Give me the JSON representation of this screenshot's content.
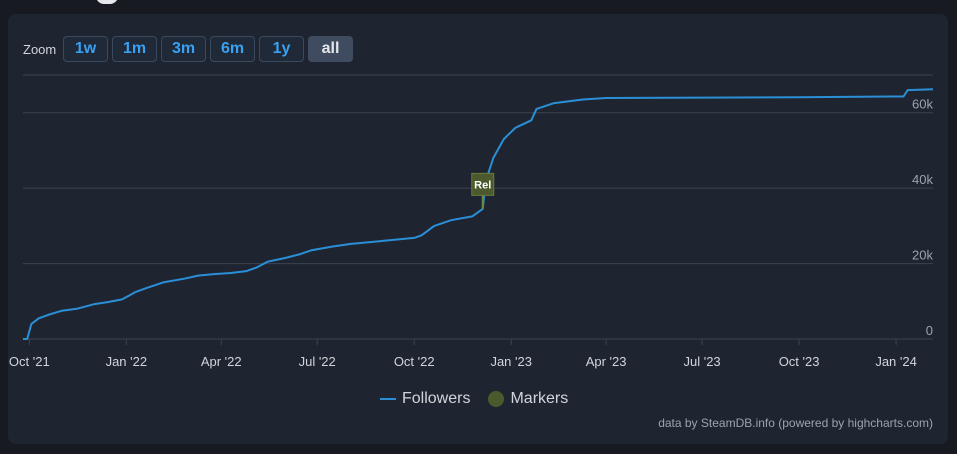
{
  "zoom": {
    "label": "Zoom",
    "buttons": [
      "1w",
      "1m",
      "3m",
      "6m",
      "1y",
      "all"
    ],
    "active": "all"
  },
  "legend": {
    "followers_label": "Followers",
    "markers_label": "Markers"
  },
  "credits": "data by SteamDB.info (powered by highcharts.com)",
  "colors": {
    "line": "#2b8fd7",
    "marker_fill": "#4a5a2c",
    "grid": "#3a4350",
    "text": "#d1d5db"
  },
  "chart_data": {
    "type": "line",
    "title": "",
    "xlabel": "",
    "ylabel": "",
    "ylim": [
      0,
      70000
    ],
    "y_ticks": [
      0,
      20000,
      40000,
      60000
    ],
    "y_tick_labels": [
      "0",
      "20k",
      "40k",
      "60k"
    ],
    "x_ticks": [
      "2021-10-01",
      "2022-01-01",
      "2022-04-01",
      "2022-07-01",
      "2022-10-01",
      "2023-01-01",
      "2023-04-01",
      "2023-07-01",
      "2023-10-01",
      "2024-01-01"
    ],
    "x_tick_labels": [
      "Oct '21",
      "Jan '22",
      "Apr '22",
      "Jul '22",
      "Oct '22",
      "Jan '23",
      "Apr '23",
      "Jul '23",
      "Oct '23",
      "Jan '24"
    ],
    "x_range": [
      "2021-09-25",
      "2024-02-05"
    ],
    "grid": true,
    "legend_position": "bottom-center",
    "series": [
      {
        "name": "Followers",
        "points": [
          [
            "2021-09-25",
            0
          ],
          [
            "2021-09-29",
            0
          ],
          [
            "2021-10-03",
            4000
          ],
          [
            "2021-10-10",
            5500
          ],
          [
            "2021-10-20",
            6500
          ],
          [
            "2021-11-01",
            7500
          ],
          [
            "2021-11-15",
            8000
          ],
          [
            "2021-12-01",
            9200
          ],
          [
            "2021-12-15",
            9800
          ],
          [
            "2021-12-28",
            10500
          ],
          [
            "2022-01-10",
            12500
          ],
          [
            "2022-01-20",
            13500
          ],
          [
            "2022-02-05",
            15000
          ],
          [
            "2022-02-25",
            16000
          ],
          [
            "2022-03-10",
            16800
          ],
          [
            "2022-03-25",
            17200
          ],
          [
            "2022-04-10",
            17500
          ],
          [
            "2022-04-25",
            18000
          ],
          [
            "2022-05-05",
            19000
          ],
          [
            "2022-05-15",
            20500
          ],
          [
            "2022-06-01",
            21500
          ],
          [
            "2022-06-15",
            22500
          ],
          [
            "2022-06-25",
            23500
          ],
          [
            "2022-07-15",
            24500
          ],
          [
            "2022-08-01",
            25200
          ],
          [
            "2022-09-01",
            26000
          ],
          [
            "2022-10-01",
            26800
          ],
          [
            "2022-10-08",
            27500
          ],
          [
            "2022-10-20",
            30000
          ],
          [
            "2022-11-05",
            31500
          ],
          [
            "2022-11-25",
            32500
          ],
          [
            "2022-12-05",
            34500
          ],
          [
            "2022-12-08",
            42000
          ],
          [
            "2022-12-15",
            48000
          ],
          [
            "2022-12-25",
            53000
          ],
          [
            "2023-01-05",
            56000
          ],
          [
            "2023-01-20",
            58000
          ],
          [
            "2023-01-25",
            61000
          ],
          [
            "2023-02-10",
            62500
          ],
          [
            "2023-03-10",
            63500
          ],
          [
            "2023-04-01",
            63900
          ],
          [
            "2023-07-01",
            64000
          ],
          [
            "2023-10-01",
            64100
          ],
          [
            "2024-01-01",
            64300
          ],
          [
            "2024-01-08",
            64300
          ],
          [
            "2024-01-12",
            66000
          ],
          [
            "2024-02-05",
            66200
          ]
        ]
      }
    ],
    "markers": [
      {
        "label": "Rel",
        "date": "2022-12-05",
        "value": 41000
      }
    ]
  }
}
